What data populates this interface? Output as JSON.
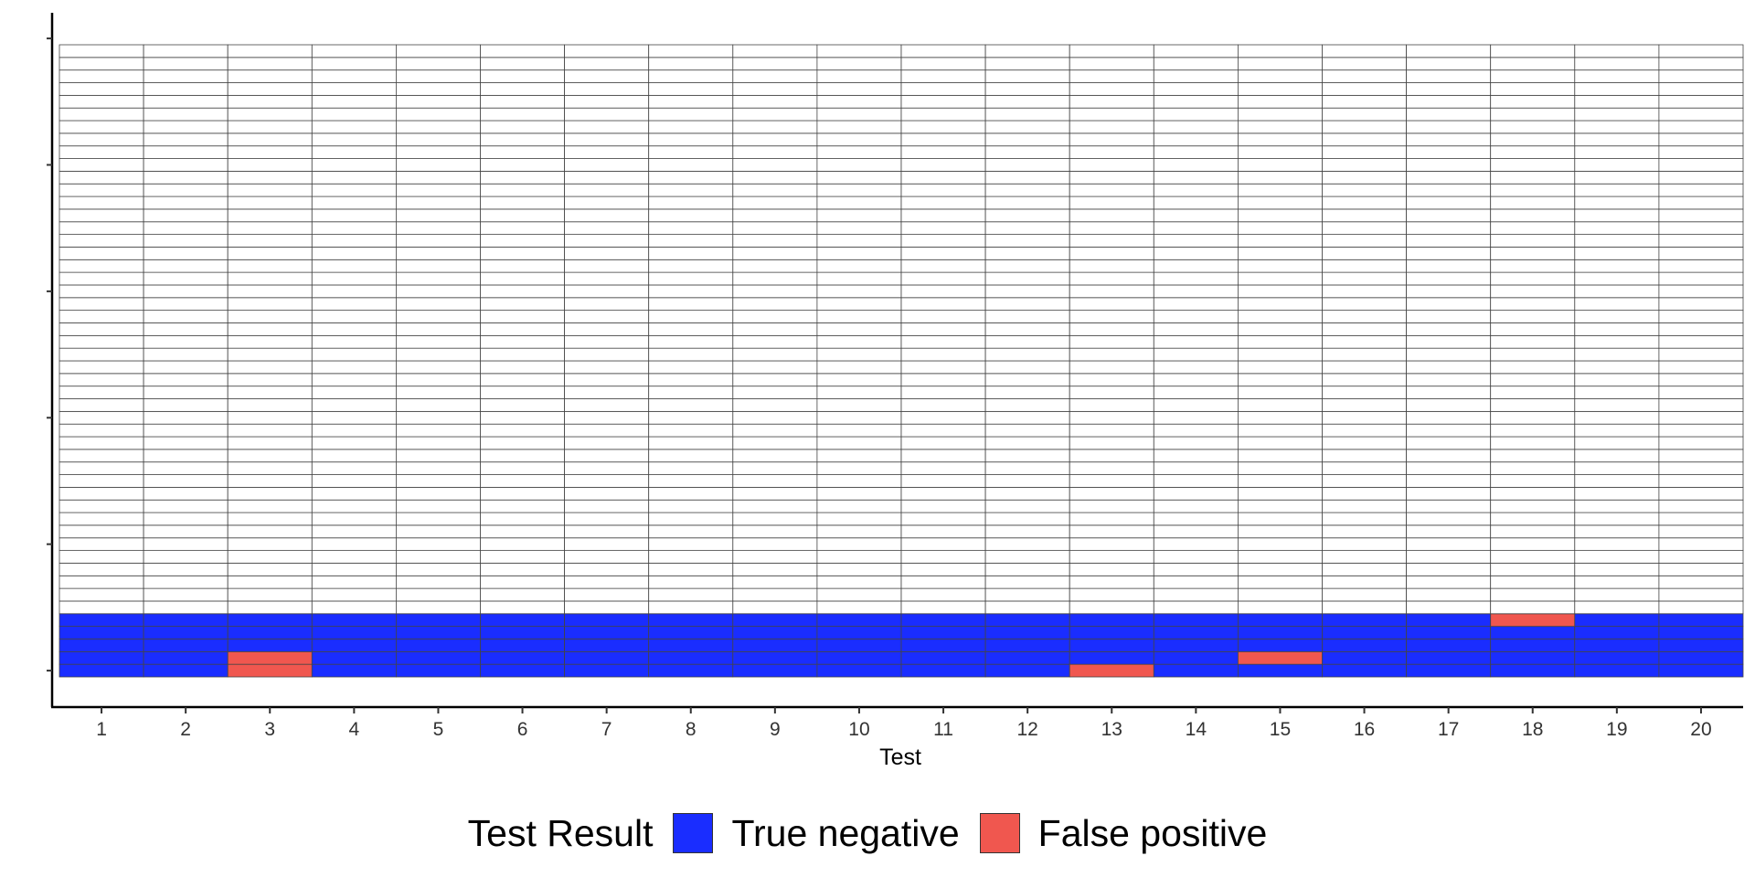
{
  "chart_data": {
    "type": "heatmap",
    "title": "",
    "xlabel": "Test",
    "ylabel": "",
    "categories": [
      "1",
      "2",
      "3",
      "4",
      "5",
      "6",
      "7",
      "8",
      "9",
      "10",
      "11",
      "12",
      "13",
      "14",
      "15",
      "16",
      "17",
      "18",
      "19",
      "20"
    ],
    "n_rows": 50,
    "y_tick_count": 6,
    "tested_rows": 5,
    "untested_fill": "#ffffff",
    "grid": true,
    "legend": {
      "title": "Test Result",
      "position": "bottom",
      "entries": [
        {
          "label": "True negative",
          "color": "#1a2dff"
        },
        {
          "label": "False positive",
          "color": "#f0574f"
        }
      ]
    },
    "false_positives": [
      {
        "test": 3,
        "row": 1
      },
      {
        "test": 3,
        "row": 2
      },
      {
        "test": 13,
        "row": 1
      },
      {
        "test": 15,
        "row": 2
      },
      {
        "test": 18,
        "row": 5
      }
    ]
  }
}
